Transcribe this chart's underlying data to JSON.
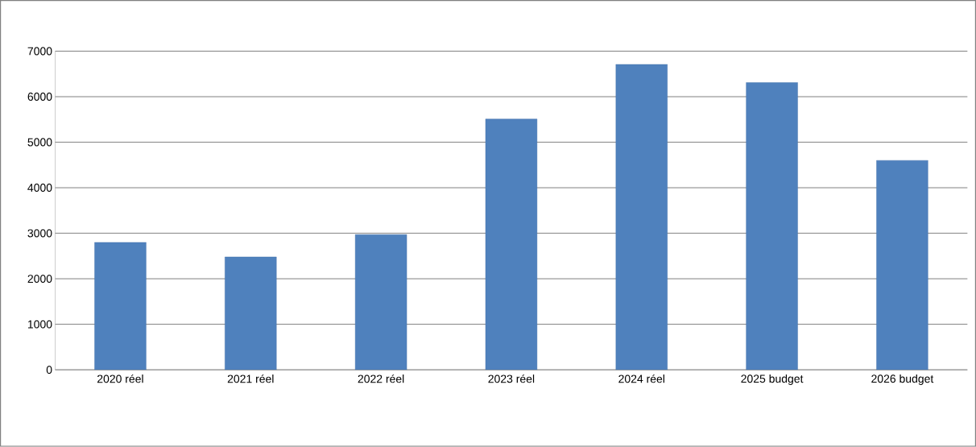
{
  "chart_data": {
    "type": "bar",
    "categories": [
      "2020 réel",
      "2021 réel",
      "2022 réel",
      "2023 réel",
      "2024 réel",
      "2025 budget",
      "2026 budget"
    ],
    "values": [
      2800,
      2480,
      2970,
      5510,
      6710,
      6310,
      4600
    ],
    "color": "#4f81bd",
    "ylim": [
      0,
      7000
    ],
    "yticks": [
      0,
      1000,
      2000,
      3000,
      4000,
      5000,
      6000,
      7000
    ],
    "grid": "y"
  }
}
